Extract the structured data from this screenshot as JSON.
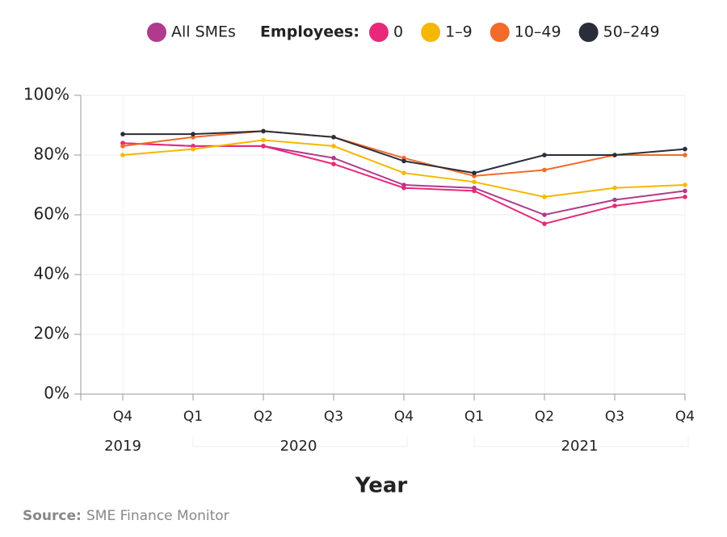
{
  "chart_data": {
    "type": "line",
    "categories": [
      "Q4",
      "Q1",
      "Q2",
      "Q3",
      "Q4",
      "Q1",
      "Q2",
      "Q3",
      "Q4"
    ],
    "x_groups": [
      {
        "label": "2019",
        "span": [
          0,
          0
        ]
      },
      {
        "label": "2020",
        "span": [
          1,
          4
        ]
      },
      {
        "label": "2021",
        "span": [
          5,
          8
        ]
      }
    ],
    "x_label": "Year",
    "legend_title": "Employees:",
    "series": [
      {
        "name": "All SMEs",
        "color": "#b03a8e",
        "values": [
          84,
          83,
          83,
          79,
          70,
          69,
          60,
          65,
          68
        ]
      },
      {
        "name": "0",
        "color": "#e8297a",
        "values": [
          84,
          83,
          83,
          77,
          69,
          68,
          57,
          63,
          66
        ]
      },
      {
        "name": "1–9",
        "color": "#f5b800",
        "values": [
          80,
          82,
          85,
          83,
          74,
          71,
          66,
          69,
          70
        ]
      },
      {
        "name": "10–49",
        "color": "#f26b2a",
        "values": [
          83,
          86,
          88,
          86,
          79,
          73,
          75,
          80,
          80
        ]
      },
      {
        "name": "50–249",
        "color": "#2a2d3a",
        "values": [
          87,
          87,
          88,
          86,
          78,
          74,
          80,
          80,
          82
        ]
      }
    ],
    "ylim": [
      0,
      100
    ],
    "yticks": [
      {
        "value": 0,
        "label": "0%"
      },
      {
        "value": 20,
        "label": "20%"
      },
      {
        "value": 40,
        "label": "40%"
      },
      {
        "value": 60,
        "label": "60%"
      },
      {
        "value": 80,
        "label": "80%"
      },
      {
        "value": 100,
        "label": "100%"
      }
    ],
    "grid": true,
    "source_label": "Source:",
    "source": "SME Finance Monitor"
  }
}
